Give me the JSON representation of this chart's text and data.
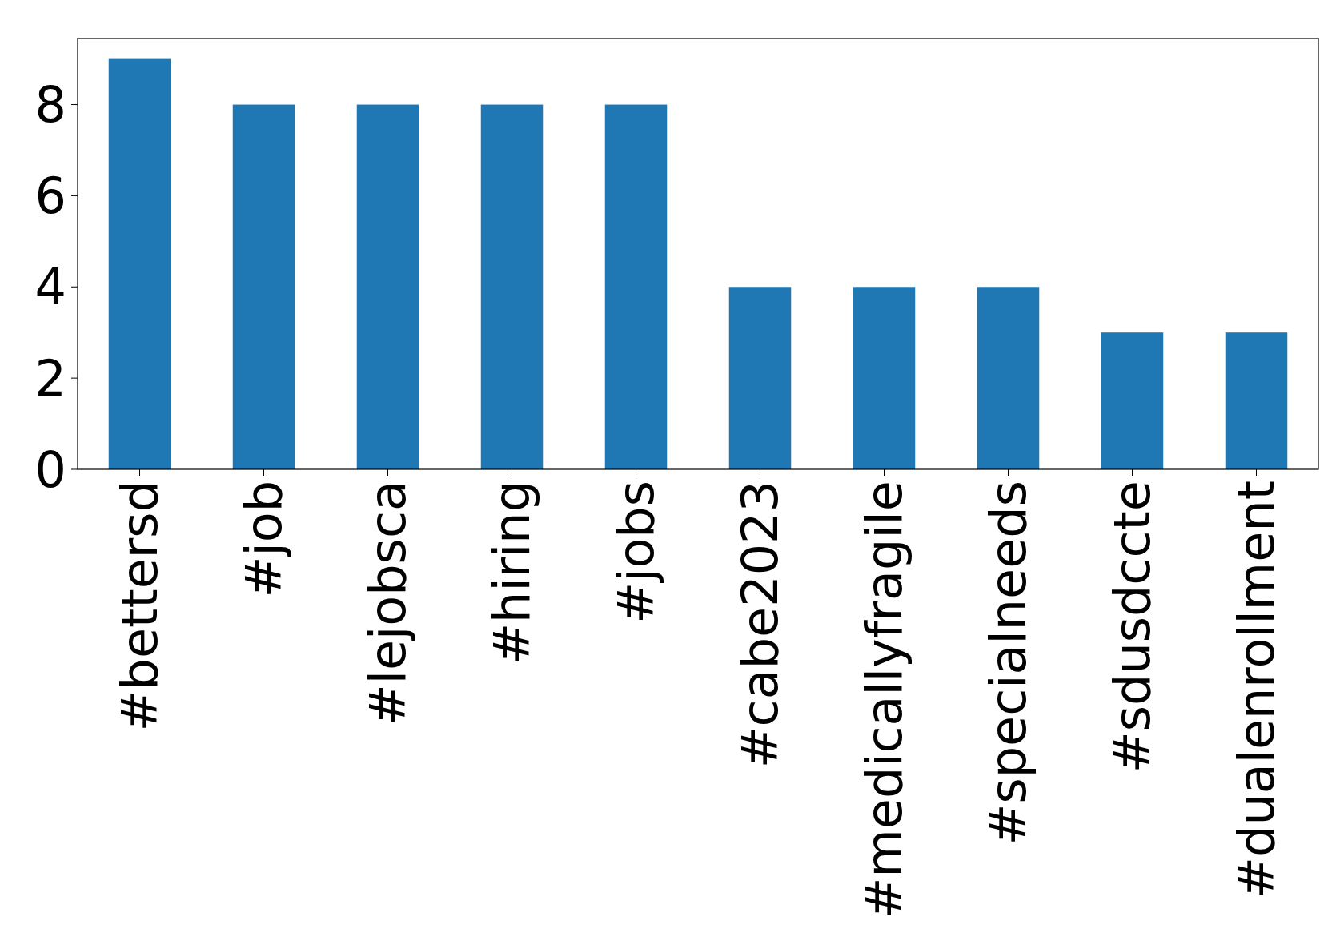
{
  "chart_data": {
    "type": "bar",
    "categories": [
      "#bettersd",
      "#job",
      "#lejobsca",
      "#hiring",
      "#jobs",
      "#cabe2023",
      "#medicallyfragile",
      "#specialneeds",
      "#sdusdccte",
      "#dualenrollment"
    ],
    "values": [
      9,
      8,
      8,
      8,
      8,
      4,
      4,
      4,
      3,
      3
    ],
    "color": "#1f77b4",
    "ylim": [
      0,
      9.45
    ],
    "yticks": [
      0,
      2,
      4,
      6,
      8
    ],
    "grid": false
  }
}
